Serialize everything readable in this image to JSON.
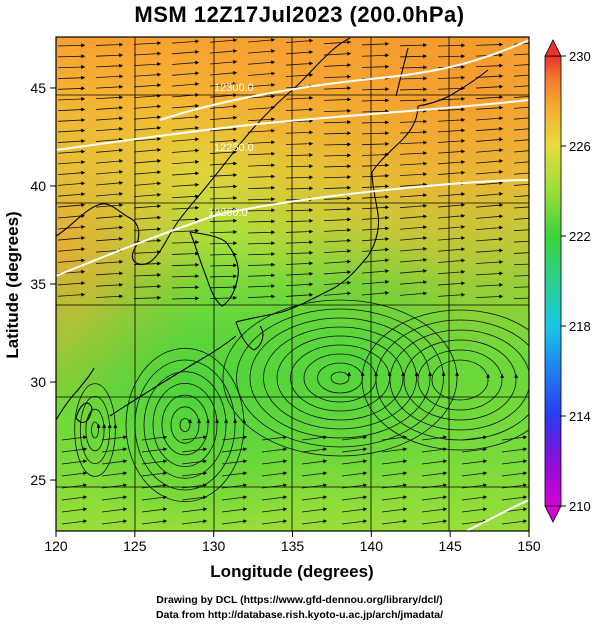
{
  "title": "MSM 12Z17Jul2023 (200.0hPa)",
  "x_axis": {
    "label": "Longitude (degrees)",
    "ticks": [
      "120",
      "125",
      "130",
      "135",
      "140",
      "145",
      "150"
    ],
    "range": [
      120,
      150
    ]
  },
  "y_axis": {
    "label": "Latitude  (degrees)",
    "ticks": [
      "25",
      "30",
      "35",
      "40",
      "45"
    ],
    "range": [
      22.4,
      47.6
    ]
  },
  "colorbar": {
    "ticks": [
      "230",
      "226",
      "222",
      "218",
      "214",
      "210"
    ],
    "range": [
      210,
      230
    ],
    "colormap": "magenta-blue-cyan-green-yellow-orange-red"
  },
  "contours": [
    {
      "label": "12300.0",
      "color": "#ffffff"
    },
    {
      "label": "12250.0",
      "color": "#ffffff"
    },
    {
      "label": "12200.0",
      "color": "#ffffff"
    },
    {
      "label": "",
      "color": "#ffffff"
    }
  ],
  "footer": {
    "line1": "Drawing by DCL (https://www.gfd-dennou.org/library/dcl/)",
    "line2": "Data from http://database.rish.kyoto-u.ac.jp/arch/jmadata/"
  }
}
